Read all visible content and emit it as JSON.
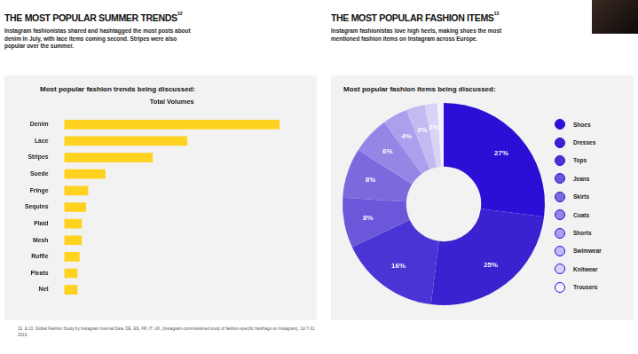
{
  "chart_data": [
    {
      "type": "bar",
      "title": "THE MOST POPULAR SUMMER TRENDS",
      "title_note": "12",
      "subtitle": "Instagram fashionistas shared and hashtagged the most posts about denim in July, with lace items coming second. Stripes were also popular over the summer.",
      "chart_title": "Most popular fashion trends being discussed:",
      "xlabel": "Total Volumes",
      "orientation": "horizontal",
      "categories": [
        "Denim",
        "Lace",
        "Stripes",
        "Suede",
        "Fringe",
        "Sequins",
        "Plaid",
        "Mesh",
        "Ruffle",
        "Pleats",
        "Net"
      ],
      "values": [
        100,
        57,
        41,
        19,
        11,
        10,
        8,
        8,
        7,
        6,
        6
      ],
      "color": "#ffd21f",
      "xlim": [
        0,
        100
      ],
      "grid": false,
      "tick_labels": "y"
    },
    {
      "type": "doughnut",
      "title": "THE MOST POPULAR FASHION ITEMS",
      "title_note": "13",
      "subtitle": "Instagram fashionistas love high heels, making shoes the most mentioned fashion items on Instagram across Europe.",
      "chart_title": "Most popular fashion items being discussed:",
      "categories": [
        "Shoes",
        "Dresses",
        "Tops",
        "Jeans",
        "Skirts",
        "Coats",
        "Shorts",
        "Swimwear",
        "Knitwear",
        "Trousers"
      ],
      "values": [
        27,
        25,
        16,
        8,
        8,
        6,
        4,
        3,
        2,
        1
      ],
      "value_labels": [
        "27%",
        "25%",
        "16%",
        "8%",
        "8%",
        "6%",
        "4%",
        "3%",
        "2%",
        null
      ],
      "colors": [
        "#2b0fd6",
        "#3a22d0",
        "#4a34d4",
        "#6b57da",
        "#7b69de",
        "#9386e5",
        "#aaa0eb",
        "#c2baf1",
        "#d9d4f7",
        "#f4f2fd"
      ],
      "data_labels": true,
      "legend": "right"
    }
  ],
  "footnote": "12. & 13. Global Fashion Study by Instagram Internal Data, DE, ES, FR, IT, UK, (Instagram-commissioned study of fashion-specific hashtags on Instagram), Jul 7-31 2016."
}
